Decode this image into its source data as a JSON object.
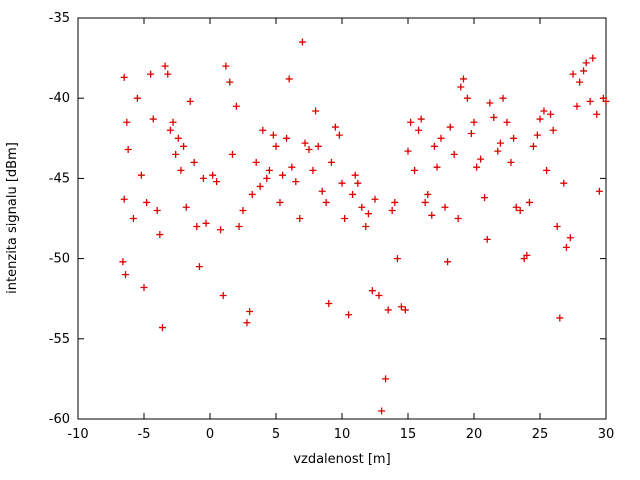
{
  "chart_data": {
    "type": "scatter",
    "title": "",
    "xlabel": "vzdalenost [m]",
    "ylabel": "intenzita signalu [dBm]",
    "xlim": [
      -10,
      30
    ],
    "ylim": [
      -60,
      -35
    ],
    "xticks": [
      -10,
      -5,
      0,
      5,
      10,
      15,
      20,
      25,
      30
    ],
    "yticks": [
      -60,
      -55,
      -50,
      -45,
      -40,
      -35
    ],
    "grid": false,
    "legend": "none",
    "marker": "plus",
    "marker_color": "#dd0000",
    "axis_color": "#000000",
    "points": [
      [
        -6.5,
        -38.7
      ],
      [
        -6.3,
        -41.5
      ],
      [
        -6.2,
        -43.2
      ],
      [
        -6.5,
        -46.3
      ],
      [
        -6.6,
        -50.2
      ],
      [
        -6.4,
        -51.0
      ],
      [
        -5.8,
        -47.5
      ],
      [
        -5.5,
        -40.0
      ],
      [
        -5.2,
        -44.8
      ],
      [
        -5.0,
        -51.8
      ],
      [
        -4.8,
        -46.5
      ],
      [
        -4.5,
        -38.5
      ],
      [
        -4.3,
        -41.3
      ],
      [
        -4.0,
        -47.0
      ],
      [
        -3.8,
        -48.5
      ],
      [
        -3.6,
        -54.3
      ],
      [
        -3.4,
        -38.0
      ],
      [
        -3.2,
        -38.5
      ],
      [
        -3.0,
        -42.0
      ],
      [
        -2.8,
        -41.5
      ],
      [
        -2.6,
        -43.5
      ],
      [
        -2.4,
        -42.5
      ],
      [
        -2.2,
        -44.5
      ],
      [
        -2.0,
        -43.0
      ],
      [
        -1.8,
        -46.8
      ],
      [
        -1.5,
        -40.2
      ],
      [
        -1.2,
        -44.0
      ],
      [
        -1.0,
        -48.0
      ],
      [
        -0.8,
        -50.5
      ],
      [
        -0.5,
        -45.0
      ],
      [
        -0.3,
        -47.8
      ],
      [
        0.2,
        -44.8
      ],
      [
        0.5,
        -45.2
      ],
      [
        0.8,
        -48.2
      ],
      [
        1.0,
        -52.3
      ],
      [
        1.2,
        -38.0
      ],
      [
        1.5,
        -39.0
      ],
      [
        1.7,
        -43.5
      ],
      [
        2.0,
        -40.5
      ],
      [
        2.2,
        -48.0
      ],
      [
        2.5,
        -47.0
      ],
      [
        2.8,
        -54.0
      ],
      [
        3.0,
        -53.3
      ],
      [
        3.2,
        -46.0
      ],
      [
        3.5,
        -44.0
      ],
      [
        3.8,
        -45.5
      ],
      [
        4.0,
        -42.0
      ],
      [
        4.3,
        -45.0
      ],
      [
        4.5,
        -44.5
      ],
      [
        4.8,
        -42.3
      ],
      [
        5.0,
        -43.0
      ],
      [
        5.3,
        -46.5
      ],
      [
        5.5,
        -44.8
      ],
      [
        5.8,
        -42.5
      ],
      [
        6.0,
        -38.8
      ],
      [
        6.2,
        -44.3
      ],
      [
        6.5,
        -45.2
      ],
      [
        6.8,
        -47.5
      ],
      [
        7.0,
        -36.5
      ],
      [
        7.2,
        -42.8
      ],
      [
        7.5,
        -43.2
      ],
      [
        7.8,
        -44.5
      ],
      [
        8.0,
        -40.8
      ],
      [
        8.2,
        -43.0
      ],
      [
        8.5,
        -45.8
      ],
      [
        8.8,
        -46.5
      ],
      [
        9.0,
        -52.8
      ],
      [
        9.2,
        -44.0
      ],
      [
        9.5,
        -41.8
      ],
      [
        9.8,
        -42.3
      ],
      [
        10.0,
        -45.3
      ],
      [
        10.2,
        -47.5
      ],
      [
        10.5,
        -53.5
      ],
      [
        10.8,
        -46.0
      ],
      [
        11.0,
        -44.8
      ],
      [
        11.2,
        -45.3
      ],
      [
        11.5,
        -46.8
      ],
      [
        11.8,
        -48.0
      ],
      [
        12.0,
        -47.2
      ],
      [
        12.3,
        -52.0
      ],
      [
        12.5,
        -46.3
      ],
      [
        12.8,
        -52.3
      ],
      [
        13.0,
        -59.5
      ],
      [
        13.3,
        -57.5
      ],
      [
        13.5,
        -53.2
      ],
      [
        13.8,
        -47.0
      ],
      [
        14.0,
        -46.5
      ],
      [
        14.2,
        -50.0
      ],
      [
        14.5,
        -53.0
      ],
      [
        14.8,
        -53.2
      ],
      [
        15.0,
        -43.3
      ],
      [
        15.2,
        -41.5
      ],
      [
        15.5,
        -44.5
      ],
      [
        15.8,
        -42.0
      ],
      [
        16.0,
        -41.3
      ],
      [
        16.3,
        -46.5
      ],
      [
        16.5,
        -46.0
      ],
      [
        16.8,
        -47.3
      ],
      [
        17.0,
        -43.0
      ],
      [
        17.2,
        -44.3
      ],
      [
        17.5,
        -42.5
      ],
      [
        17.8,
        -46.8
      ],
      [
        18.0,
        -50.2
      ],
      [
        18.2,
        -41.8
      ],
      [
        18.5,
        -43.5
      ],
      [
        18.8,
        -47.5
      ],
      [
        19.0,
        -39.3
      ],
      [
        19.2,
        -38.8
      ],
      [
        19.5,
        -40.0
      ],
      [
        19.8,
        -42.2
      ],
      [
        20.0,
        -41.5
      ],
      [
        20.2,
        -44.3
      ],
      [
        20.5,
        -43.8
      ],
      [
        20.8,
        -46.2
      ],
      [
        21.0,
        -48.8
      ],
      [
        21.2,
        -40.3
      ],
      [
        21.5,
        -41.2
      ],
      [
        21.8,
        -43.3
      ],
      [
        22.0,
        -42.8
      ],
      [
        22.2,
        -40.0
      ],
      [
        22.5,
        -41.5
      ],
      [
        22.8,
        -44.0
      ],
      [
        23.0,
        -42.5
      ],
      [
        23.2,
        -46.8
      ],
      [
        23.5,
        -47.0
      ],
      [
        23.8,
        -50.0
      ],
      [
        24.0,
        -49.8
      ],
      [
        24.2,
        -46.5
      ],
      [
        24.5,
        -43.0
      ],
      [
        24.8,
        -42.3
      ],
      [
        25.0,
        -41.3
      ],
      [
        25.3,
        -40.8
      ],
      [
        25.5,
        -44.5
      ],
      [
        25.8,
        -41.0
      ],
      [
        26.0,
        -42.0
      ],
      [
        26.3,
        -48.0
      ],
      [
        26.5,
        -53.7
      ],
      [
        26.8,
        -45.3
      ],
      [
        27.0,
        -49.3
      ],
      [
        27.3,
        -48.7
      ],
      [
        27.5,
        -38.5
      ],
      [
        27.8,
        -40.5
      ],
      [
        28.0,
        -39.0
      ],
      [
        28.3,
        -38.3
      ],
      [
        28.5,
        -37.8
      ],
      [
        28.8,
        -40.2
      ],
      [
        29.0,
        -37.5
      ],
      [
        29.3,
        -41.0
      ],
      [
        29.5,
        -45.8
      ],
      [
        29.8,
        -40.0
      ],
      [
        30.0,
        -40.2
      ]
    ]
  }
}
